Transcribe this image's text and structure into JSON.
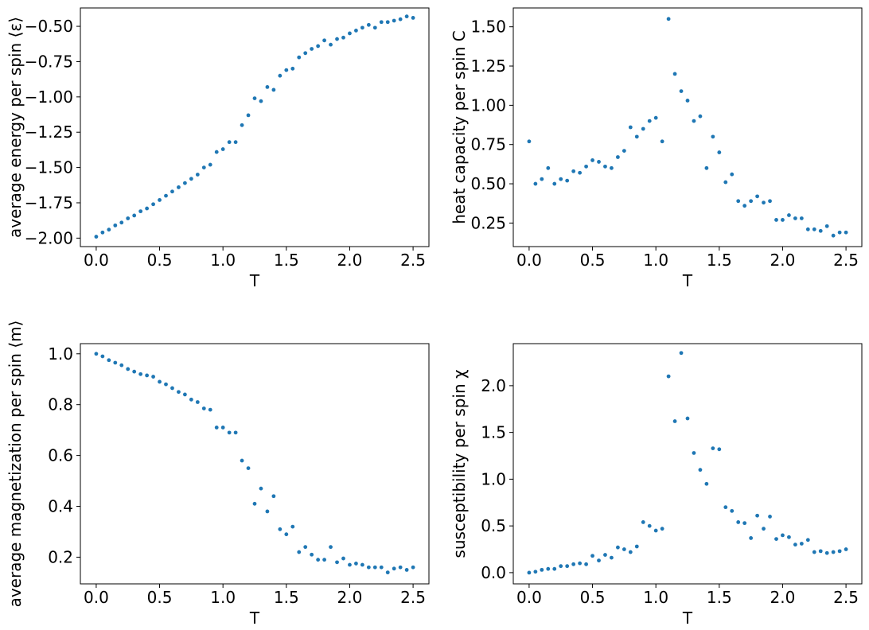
{
  "chart_data": [
    {
      "type": "scatter",
      "title": "",
      "xlabel": "T",
      "ylabel": "average energy per spin ⟨ε⟩",
      "marker_color": "#1f77b4",
      "xlim": [
        -0.125,
        2.625
      ],
      "ylim": [
        -2.06,
        -0.37
      ],
      "xticks": [
        0.0,
        0.5,
        1.0,
        1.5,
        2.0,
        2.5
      ],
      "xtick_labels": [
        "0.0",
        "0.5",
        "1.0",
        "1.5",
        "2.0",
        "2.5"
      ],
      "yticks": [
        -2.0,
        -1.75,
        -1.5,
        -1.25,
        -1.0,
        -0.75,
        -0.5
      ],
      "ytick_labels": [
        "−2.00",
        "−1.75",
        "−1.50",
        "−1.25",
        "−1.00",
        "−0.75",
        "−0.50"
      ],
      "x": [
        0.0,
        0.05,
        0.1,
        0.15,
        0.2,
        0.25,
        0.3,
        0.35,
        0.4,
        0.45,
        0.5,
        0.55,
        0.6,
        0.65,
        0.7,
        0.75,
        0.8,
        0.85,
        0.9,
        0.95,
        1.0,
        1.05,
        1.1,
        1.15,
        1.2,
        1.25,
        1.3,
        1.35,
        1.4,
        1.45,
        1.5,
        1.55,
        1.6,
        1.65,
        1.7,
        1.75,
        1.8,
        1.85,
        1.9,
        1.95,
        2.0,
        2.05,
        2.1,
        2.15,
        2.2,
        2.25,
        2.3,
        2.35,
        2.4,
        2.45,
        2.5
      ],
      "y": [
        -1.99,
        -1.96,
        -1.94,
        -1.91,
        -1.89,
        -1.86,
        -1.84,
        -1.81,
        -1.79,
        -1.76,
        -1.73,
        -1.7,
        -1.67,
        -1.64,
        -1.61,
        -1.58,
        -1.55,
        -1.5,
        -1.48,
        -1.39,
        -1.37,
        -1.32,
        -1.32,
        -1.2,
        -1.13,
        -1.01,
        -1.03,
        -0.93,
        -0.95,
        -0.85,
        -0.81,
        -0.8,
        -0.72,
        -0.69,
        -0.66,
        -0.64,
        -0.6,
        -0.63,
        -0.59,
        -0.58,
        -0.55,
        -0.53,
        -0.51,
        -0.49,
        -0.51,
        -0.47,
        -0.47,
        -0.46,
        -0.45,
        -0.43,
        -0.44
      ]
    },
    {
      "type": "scatter",
      "title": "",
      "xlabel": "T",
      "ylabel": "heat capacity per spin C",
      "marker_color": "#1f77b4",
      "xlim": [
        -0.125,
        2.625
      ],
      "ylim": [
        0.1,
        1.62
      ],
      "xticks": [
        0.0,
        0.5,
        1.0,
        1.5,
        2.0,
        2.5
      ],
      "xtick_labels": [
        "0.0",
        "0.5",
        "1.0",
        "1.5",
        "2.0",
        "2.5"
      ],
      "yticks": [
        0.25,
        0.5,
        0.75,
        1.0,
        1.25,
        1.5
      ],
      "ytick_labels": [
        "0.25",
        "0.50",
        "0.75",
        "1.00",
        "1.25",
        "1.50"
      ],
      "x": [
        0.0,
        0.05,
        0.1,
        0.15,
        0.2,
        0.25,
        0.3,
        0.35,
        0.4,
        0.45,
        0.5,
        0.55,
        0.6,
        0.65,
        0.7,
        0.75,
        0.8,
        0.85,
        0.9,
        0.95,
        1.0,
        1.05,
        1.1,
        1.15,
        1.2,
        1.25,
        1.3,
        1.35,
        1.4,
        1.45,
        1.5,
        1.55,
        1.6,
        1.65,
        1.7,
        1.75,
        1.8,
        1.85,
        1.9,
        1.95,
        2.0,
        2.05,
        2.1,
        2.15,
        2.2,
        2.25,
        2.3,
        2.35,
        2.4,
        2.45,
        2.5
      ],
      "y": [
        0.77,
        0.5,
        0.53,
        0.6,
        0.5,
        0.53,
        0.52,
        0.58,
        0.57,
        0.61,
        0.65,
        0.64,
        0.61,
        0.6,
        0.67,
        0.71,
        0.86,
        0.8,
        0.85,
        0.9,
        0.92,
        0.77,
        1.55,
        1.2,
        1.09,
        1.03,
        0.9,
        0.93,
        0.6,
        0.8,
        0.7,
        0.51,
        0.56,
        0.39,
        0.36,
        0.39,
        0.42,
        0.38,
        0.39,
        0.27,
        0.27,
        0.3,
        0.28,
        0.28,
        0.21,
        0.21,
        0.2,
        0.23,
        0.17,
        0.19,
        0.19
      ]
    },
    {
      "type": "scatter",
      "title": "",
      "xlabel": "T",
      "ylabel": "average magnetization per spin ⟨m⟩",
      "marker_color": "#1f77b4",
      "xlim": [
        -0.125,
        2.625
      ],
      "ylim": [
        0.095,
        1.04
      ],
      "xticks": [
        0.0,
        0.5,
        1.0,
        1.5,
        2.0,
        2.5
      ],
      "xtick_labels": [
        "0.0",
        "0.5",
        "1.0",
        "1.5",
        "2.0",
        "2.5"
      ],
      "yticks": [
        0.2,
        0.4,
        0.6,
        0.8,
        1.0
      ],
      "ytick_labels": [
        "0.2",
        "0.4",
        "0.6",
        "0.8",
        "1.0"
      ],
      "x": [
        0.0,
        0.05,
        0.1,
        0.15,
        0.2,
        0.25,
        0.3,
        0.35,
        0.4,
        0.45,
        0.5,
        0.55,
        0.6,
        0.65,
        0.7,
        0.75,
        0.8,
        0.85,
        0.9,
        0.95,
        1.0,
        1.05,
        1.1,
        1.15,
        1.2,
        1.25,
        1.3,
        1.35,
        1.4,
        1.45,
        1.5,
        1.55,
        1.6,
        1.65,
        1.7,
        1.75,
        1.8,
        1.85,
        1.9,
        1.95,
        2.0,
        2.05,
        2.1,
        2.15,
        2.2,
        2.25,
        2.3,
        2.35,
        2.4,
        2.45,
        2.5
      ],
      "y": [
        1.0,
        0.99,
        0.975,
        0.965,
        0.955,
        0.94,
        0.93,
        0.92,
        0.915,
        0.91,
        0.89,
        0.88,
        0.865,
        0.85,
        0.84,
        0.82,
        0.81,
        0.785,
        0.78,
        0.71,
        0.71,
        0.69,
        0.69,
        0.58,
        0.55,
        0.41,
        0.47,
        0.38,
        0.44,
        0.31,
        0.29,
        0.32,
        0.22,
        0.24,
        0.21,
        0.19,
        0.19,
        0.24,
        0.18,
        0.195,
        0.17,
        0.175,
        0.17,
        0.16,
        0.16,
        0.16,
        0.14,
        0.155,
        0.16,
        0.15,
        0.16
      ]
    },
    {
      "type": "scatter",
      "title": "",
      "xlabel": "T",
      "ylabel": "susceptibility per spin χ",
      "marker_color": "#1f77b4",
      "xlim": [
        -0.125,
        2.625
      ],
      "ylim": [
        -0.12,
        2.45
      ],
      "xticks": [
        0.0,
        0.5,
        1.0,
        1.5,
        2.0,
        2.5
      ],
      "xtick_labels": [
        "0.0",
        "0.5",
        "1.0",
        "1.5",
        "2.0",
        "2.5"
      ],
      "yticks": [
        0.0,
        0.5,
        1.0,
        1.5,
        2.0
      ],
      "ytick_labels": [
        "0.0",
        "0.5",
        "1.0",
        "1.5",
        "2.0"
      ],
      "x": [
        0.0,
        0.05,
        0.1,
        0.15,
        0.2,
        0.25,
        0.3,
        0.35,
        0.4,
        0.45,
        0.5,
        0.55,
        0.6,
        0.65,
        0.7,
        0.75,
        0.8,
        0.85,
        0.9,
        0.95,
        1.0,
        1.05,
        1.1,
        1.15,
        1.2,
        1.25,
        1.3,
        1.35,
        1.4,
        1.45,
        1.5,
        1.55,
        1.6,
        1.65,
        1.7,
        1.75,
        1.8,
        1.85,
        1.9,
        1.95,
        2.0,
        2.05,
        2.1,
        2.15,
        2.2,
        2.25,
        2.3,
        2.35,
        2.4,
        2.45,
        2.5
      ],
      "y": [
        0.0,
        0.01,
        0.03,
        0.04,
        0.04,
        0.07,
        0.07,
        0.09,
        0.1,
        0.09,
        0.18,
        0.13,
        0.19,
        0.16,
        0.27,
        0.25,
        0.22,
        0.28,
        0.54,
        0.5,
        0.45,
        0.47,
        2.1,
        1.62,
        2.35,
        1.65,
        1.28,
        1.1,
        0.95,
        1.33,
        1.32,
        0.7,
        0.66,
        0.54,
        0.53,
        0.37,
        0.61,
        0.47,
        0.6,
        0.36,
        0.4,
        0.38,
        0.3,
        0.31,
        0.35,
        0.22,
        0.23,
        0.21,
        0.22,
        0.23,
        0.25
      ]
    }
  ]
}
